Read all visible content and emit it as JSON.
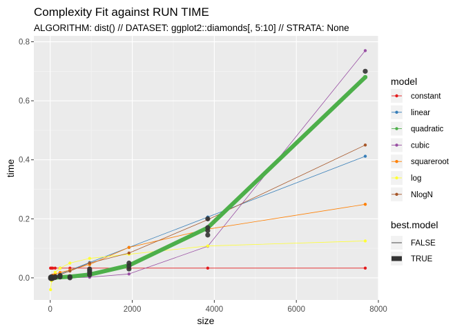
{
  "chart_data": {
    "type": "line",
    "title": "Complexity Fit against RUN TIME",
    "subtitle": "ALGORITHM: dist() // DATASET: ggplot2::diamonds[, 5:10] // STRATA: None",
    "xlabel": "size",
    "ylabel": "time",
    "xlim": [
      -400,
      8000
    ],
    "ylim": [
      -0.075,
      0.82
    ],
    "x_ticks": [
      0,
      2000,
      4000,
      6000,
      8000
    ],
    "x_tick_labels": [
      "0",
      "2000",
      "4000",
      "6000",
      "8000"
    ],
    "y_ticks": [
      0.0,
      0.2,
      0.4,
      0.6,
      0.8
    ],
    "y_tick_labels": [
      "0.0",
      "0.2",
      "0.4",
      "0.6",
      "0.8"
    ],
    "grid": true,
    "legend_placement": "right",
    "x": [
      8,
      30,
      60,
      120,
      240,
      480,
      960,
      1920,
      3840,
      7680
    ],
    "series": [
      {
        "name": "constant",
        "color": "#E41A1C",
        "best": false,
        "values": [
          0.033,
          0.033,
          0.033,
          0.033,
          0.033,
          0.033,
          0.033,
          0.033,
          0.033,
          0.033
        ]
      },
      {
        "name": "linear",
        "color": "#377EB8",
        "best": false,
        "values": [
          0.0,
          0.002,
          0.004,
          0.007,
          0.013,
          0.026,
          0.052,
          0.103,
          0.206,
          0.412
        ]
      },
      {
        "name": "quadratic",
        "color": "#4DAF4A",
        "best": true,
        "values": [
          0.0,
          0.0,
          0.0,
          0.001,
          0.002,
          0.004,
          0.011,
          0.042,
          0.17,
          0.68
        ]
      },
      {
        "name": "cubic",
        "color": "#984EA3",
        "best": false,
        "values": [
          0.0,
          0.0,
          0.0,
          0.0,
          0.0,
          0.0,
          0.002,
          0.013,
          0.107,
          0.77
        ]
      },
      {
        "name": "squareroot",
        "color": "#FF7F00",
        "best": false,
        "values": [
          0.002,
          0.005,
          0.009,
          0.013,
          0.018,
          0.026,
          0.045,
          0.103,
          0.165,
          0.249
        ]
      },
      {
        "name": "log",
        "color": "#FFFF33",
        "best": false,
        "values": [
          -0.04,
          -0.01,
          0.004,
          0.019,
          0.033,
          0.05,
          0.066,
          0.08,
          0.108,
          0.125
        ]
      },
      {
        "name": "NlogN",
        "color": "#A65628",
        "best": false,
        "values": [
          0.0,
          0.001,
          0.003,
          0.006,
          0.011,
          0.023,
          0.05,
          0.084,
          0.197,
          0.45
        ]
      }
    ],
    "observed": {
      "name": "observed",
      "color": "#333333",
      "points": [
        [
          8,
          -0.002
        ],
        [
          8,
          0.002
        ],
        [
          30,
          -0.003
        ],
        [
          30,
          0.001
        ],
        [
          30,
          0.004
        ],
        [
          60,
          -0.002
        ],
        [
          60,
          0.002
        ],
        [
          120,
          0.001
        ],
        [
          120,
          0.004
        ],
        [
          240,
          0.003
        ],
        [
          240,
          0.008
        ],
        [
          480,
          0.0
        ],
        [
          480,
          0.004
        ],
        [
          960,
          0.01
        ],
        [
          960,
          0.018
        ],
        [
          960,
          0.024
        ],
        [
          960,
          0.03
        ],
        [
          1920,
          0.03
        ],
        [
          1920,
          0.04
        ],
        [
          1920,
          0.05
        ],
        [
          3840,
          0.145
        ],
        [
          3840,
          0.16
        ],
        [
          3840,
          0.17
        ],
        [
          3840,
          0.2
        ],
        [
          7680,
          0.7
        ]
      ]
    },
    "legend_model": {
      "title": "model",
      "items": [
        {
          "label": "constant",
          "color": "#E41A1C"
        },
        {
          "label": "linear",
          "color": "#377EB8"
        },
        {
          "label": "quadratic",
          "color": "#4DAF4A"
        },
        {
          "label": "cubic",
          "color": "#984EA3"
        },
        {
          "label": "squareroot",
          "color": "#FF7F00"
        },
        {
          "label": "log",
          "color": "#FFFF33"
        },
        {
          "label": "NlogN",
          "color": "#A65628"
        }
      ]
    },
    "legend_best": {
      "title": "best.model",
      "items": [
        {
          "label": "FALSE",
          "width": "thin"
        },
        {
          "label": "TRUE",
          "width": "thick"
        }
      ]
    }
  }
}
